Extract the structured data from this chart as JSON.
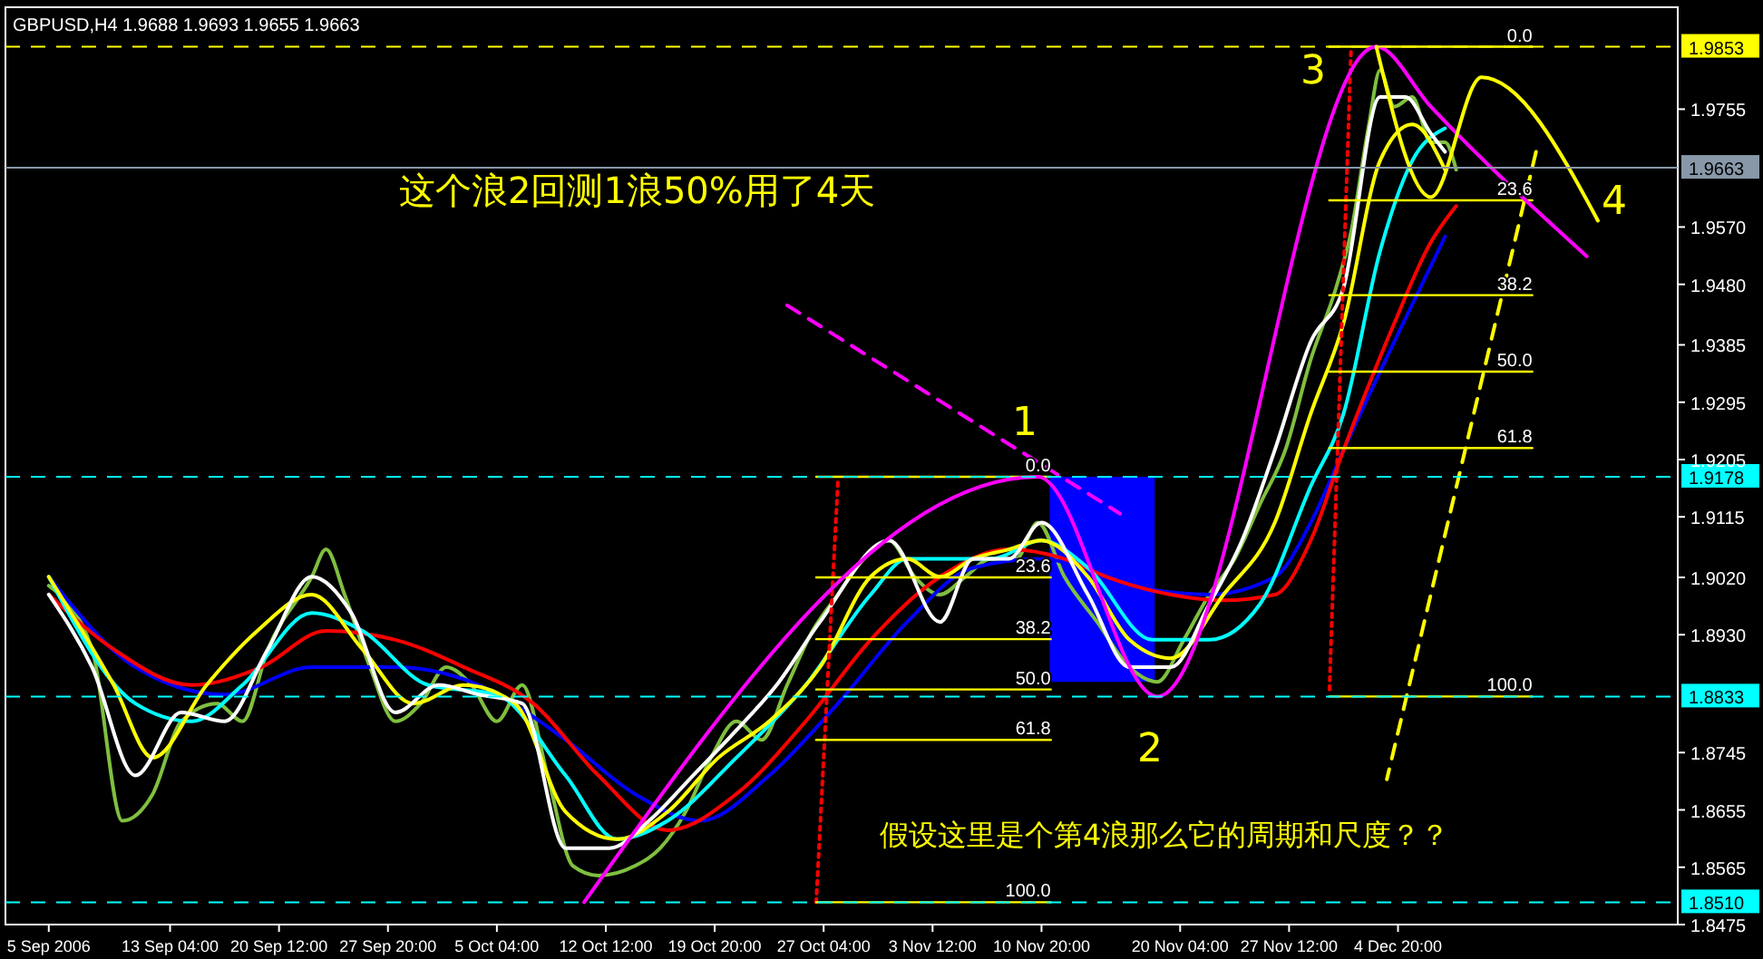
{
  "chart_data": {
    "type": "line",
    "title": "GBPUSD,H4  1.9688 1.9693 1.9655 1.9663",
    "xlim": [
      "2006-09-02T02:00",
      "2006-12-23T16:00"
    ],
    "ylim": [
      1.8475,
      1.9915
    ],
    "xticks": [
      {
        "value": "2006-09-05T00:00",
        "label": "5 Sep 2006"
      },
      {
        "value": "2006-09-13T04:00",
        "label": "13 Sep 04:00"
      },
      {
        "value": "2006-09-20T12:00",
        "label": "20 Sep 12:00"
      },
      {
        "value": "2006-09-27T20:00",
        "label": "27 Sep 20:00"
      },
      {
        "value": "2006-10-05T04:00",
        "label": "5 Oct 04:00"
      },
      {
        "value": "2006-10-12T12:00",
        "label": "12 Oct 12:00"
      },
      {
        "value": "2006-10-19T20:00",
        "label": "19 Oct 20:00"
      },
      {
        "value": "2006-10-27T04:00",
        "label": "27 Oct 04:00"
      },
      {
        "value": "2006-11-03T12:00",
        "label": "3 Nov 12:00"
      },
      {
        "value": "2006-11-10T20:00",
        "label": "10 Nov 20:00"
      },
      {
        "value": "2006-11-20T04:00",
        "label": "20 Nov 04:00"
      },
      {
        "value": "2006-11-27T12:00",
        "label": "27 Nov 12:00"
      },
      {
        "value": "2006-12-04T20:00",
        "label": "4 Dec 20:00"
      }
    ],
    "yticks": [
      {
        "value": 1.8475,
        "label": "1.8475"
      },
      {
        "value": 1.8565,
        "label": "1.8565"
      },
      {
        "value": 1.8655,
        "label": "1.8655"
      },
      {
        "value": 1.8745,
        "label": "1.8745"
      },
      {
        "value": 1.893,
        "label": "1.8930"
      },
      {
        "value": 1.902,
        "label": "1.9020"
      },
      {
        "value": 1.9115,
        "label": "1.9115"
      },
      {
        "value": 1.9205,
        "label": "1.9205"
      },
      {
        "value": 1.9295,
        "label": "1.9295"
      },
      {
        "value": 1.9385,
        "label": "1.9385"
      },
      {
        "value": 1.948,
        "label": "1.9480"
      },
      {
        "value": 1.957,
        "label": "1.9570"
      },
      {
        "value": 1.9755,
        "label": "1.9755"
      }
    ],
    "ref_lines": [
      {
        "axis": "y",
        "value": 1.9853,
        "label": "1.9853",
        "color": "#ffff00",
        "line_style": "dashed"
      },
      {
        "axis": "y",
        "value": 1.9663,
        "label": "1.9663",
        "color": "#8898a8",
        "line_style": "solid"
      },
      {
        "axis": "y",
        "value": 1.9178,
        "label": "1.9178",
        "color": "#00ffff",
        "line_style": "dashed"
      },
      {
        "axis": "y",
        "value": 1.8833,
        "label": "1.8833",
        "color": "#00ffff",
        "line_style": "dashed"
      },
      {
        "axis": "y",
        "value": 1.851,
        "label": "1.8510",
        "color": "#00ffff",
        "line_style": "dashed"
      }
    ],
    "series": [
      {
        "type": "bar",
        "color": "#0000ff",
        "x": [
          "2006-11-14T22:00"
        ],
        "base": [
          1.8856
        ],
        "values": [
          0.0322
        ]
      },
      {
        "color": "#7fbf3f",
        "x": [
          "2006-09-05T00:00",
          "2006-09-07T22:00",
          "2006-09-09T23:00",
          "2006-09-12T00:00",
          "2006-09-13T22:00",
          "2006-09-16T08:00",
          "2006-09-18T01:00",
          "2006-09-19T18:00",
          "2006-09-22T17:00",
          "2006-09-23T16:00",
          "2006-09-24T22:00",
          "2006-09-26T15:00",
          "2006-09-28T08:00",
          "2006-09-30T01:00",
          "2006-10-01T18:00",
          "2006-10-03T11:00",
          "2006-10-05T04:00",
          "2006-10-06T21:00",
          "2006-10-08T14:00",
          "2006-10-10T07:00",
          "2006-10-12T00:00",
          "2006-10-14T11:00",
          "2006-10-16T04:00",
          "2006-10-17T21:00",
          "2006-10-19T14:00",
          "2006-10-21T07:00",
          "2006-10-23T00:00",
          "2006-10-24T17:00",
          "2006-10-26T10:00",
          "2006-10-28T03:00",
          "2006-10-29T21:00",
          "2006-10-31T14:00",
          "2006-11-02T07:00",
          "2006-11-04T00:00",
          "2006-11-05T17:00",
          "2006-11-07T10:00",
          "2006-11-09T03:00",
          "2006-11-10T14:00",
          "2006-11-12T09:00",
          "2006-11-14T14:00",
          "2006-11-16T18:00",
          "2006-11-18T15:00",
          "2006-11-20T10:00",
          "2006-11-22T03:00",
          "2006-11-23T20:00",
          "2006-11-25T13:00",
          "2006-11-27T06:00",
          "2006-11-28T23:00",
          "2006-11-30T16:00",
          "2006-12-01T16:00",
          "2006-12-02T21:00",
          "2006-12-03T15:00",
          "2006-12-04T14:00",
          "2006-12-05T19:00",
          "2006-12-07T01:00",
          "2006-12-08T00:00",
          "2006-12-08T18:00"
        ],
        "values": [
          1.9007,
          1.8907,
          1.8638,
          1.868,
          1.8794,
          1.8822,
          1.8794,
          1.8907,
          1.9021,
          1.9064,
          1.8993,
          1.8879,
          1.8794,
          1.8822,
          1.8879,
          1.8851,
          1.8794,
          1.8851,
          1.8709,
          1.8567,
          1.8552,
          1.8567,
          1.8595,
          1.8652,
          1.8737,
          1.8794,
          1.8765,
          1.8851,
          1.8936,
          1.8993,
          1.9049,
          1.9078,
          1.9021,
          1.8993,
          1.9021,
          1.9049,
          1.9049,
          1.9106,
          1.9021,
          1.895,
          1.8879,
          1.8856,
          1.8922,
          1.8993,
          1.9049,
          1.9135,
          1.922,
          1.9362,
          1.9475,
          1.9561,
          1.9731,
          1.9816,
          1.9759,
          1.9774,
          1.9703,
          1.9703,
          1.966
        ]
      },
      {
        "color": "#0000ff",
        "x": [
          "2006-09-05T00:00",
          "2006-09-10T20:00",
          "2006-09-16T20:00",
          "2006-09-22T17:00",
          "2006-09-28T08:00",
          "2006-10-03T23:00",
          "2006-10-09T19:00",
          "2006-10-14T11:00",
          "2006-10-18T21:00",
          "2006-10-23T12:00",
          "2006-10-28T03:00",
          "2006-11-01T19:00",
          "2006-11-06T05:00",
          "2006-11-10T20:00",
          "2006-11-16T18:00",
          "2006-11-22T03:00",
          "2006-11-26T13:00",
          "2006-11-28T23:00",
          "2006-12-01T04:00",
          "2006-12-04T14:00",
          "2006-12-08T00:00"
        ],
        "values": [
          1.9021,
          1.8879,
          1.8836,
          1.8879,
          1.8879,
          1.8851,
          1.8765,
          1.868,
          1.8638,
          1.8709,
          1.8822,
          1.895,
          1.9035,
          1.9049,
          1.9007,
          1.8993,
          1.9021,
          1.9106,
          1.922,
          1.939,
          1.9555
        ]
      },
      {
        "color": "#ff0000",
        "x": [
          "2006-09-05T00:00",
          "2006-09-09T09:00",
          "2006-09-14T15:00",
          "2006-09-19T07:00",
          "2006-09-23T16:00",
          "2006-09-28T08:00",
          "2006-10-02T23:00",
          "2006-10-07T15:00",
          "2006-10-12T00:00",
          "2006-10-16T16:00",
          "2006-10-21T07:00",
          "2006-10-25T23:00",
          "2006-10-30T08:00",
          "2006-11-04T00:00",
          "2006-11-08T15:00",
          "2006-11-12T09:00",
          "2006-11-15T05:00",
          "2006-11-19T13:00",
          "2006-11-23T02:00",
          "2006-11-26T13:00",
          "2006-11-28T23:00",
          "2006-12-01T04:00",
          "2006-12-04T14:00",
          "2006-12-07T01:00",
          "2006-12-08T18:00"
        ],
        "values": [
          1.8993,
          1.8907,
          1.8851,
          1.8879,
          1.8936,
          1.8922,
          1.8879,
          1.8822,
          1.8709,
          1.8623,
          1.868,
          1.8794,
          1.8922,
          1.9021,
          1.9064,
          1.9049,
          1.9021,
          1.8993,
          1.8984,
          1.8993,
          1.9078,
          1.922,
          1.9419,
          1.9546,
          1.9603
        ]
      },
      {
        "color": "#00ffff",
        "x": [
          "2006-09-05T00:00",
          "2006-09-10T20:00",
          "2006-09-14T15:00",
          "2006-09-18T01:00",
          "2006-09-22T17:00",
          "2006-09-26T03:00",
          "2006-09-30T13:00",
          "2006-10-05T04:00",
          "2006-10-09T19:00",
          "2006-10-13T06:00",
          "2006-10-16T16:00",
          "2006-10-21T07:00",
          "2006-10-25T23:00",
          "2006-10-30T08:00",
          "2006-11-01T19:00",
          "2006-11-04T00:00",
          "2006-11-07T10:00",
          "2006-11-10T20:00",
          "2006-11-13T23:00",
          "2006-11-18T07:00",
          "2006-11-22T03:00",
          "2006-11-25T13:00",
          "2006-11-28T23:00",
          "2006-12-01T04:00",
          "2006-12-03T15:00",
          "2006-12-05T19:00",
          "2006-12-08T00:00"
        ],
        "values": [
          1.9021,
          1.8822,
          1.8794,
          1.8851,
          1.8964,
          1.8936,
          1.8851,
          1.8836,
          1.8709,
          1.8609,
          1.8638,
          1.8737,
          1.8851,
          1.8993,
          1.9049,
          1.9049,
          1.9049,
          1.9078,
          1.9035,
          1.8922,
          1.8922,
          1.8978,
          1.9163,
          1.9277,
          1.9532,
          1.9674,
          1.9725
        ]
      },
      {
        "color": "#ffff00",
        "x": [
          "2006-09-05T00:00",
          "2006-09-09T09:00",
          "2006-09-12T00:00",
          "2006-09-15T15:00",
          "2006-09-19T01:00",
          "2006-09-22T17:00",
          "2006-09-26T03:00",
          "2006-09-29T13:00",
          "2006-10-02T23:00",
          "2006-10-06T09:00",
          "2006-10-09T19:00",
          "2006-10-13T06:00",
          "2006-10-16T16:00",
          "2006-10-20T02:00",
          "2006-10-23T12:00",
          "2006-10-26T22:00",
          "2006-10-30T08:00",
          "2006-11-01T19:00",
          "2006-11-04T00:00",
          "2006-11-06T05:00",
          "2006-11-08T15:00",
          "2006-11-10T20:00",
          "2006-11-13T23:00",
          "2006-11-16T18:00",
          "2006-11-19T13:00",
          "2006-11-23T02:00",
          "2006-11-26T13:00",
          "2006-11-28T23:00",
          "2006-12-01T04:00",
          "2006-12-03T15:00",
          "2006-12-05T19:00",
          "2006-12-08T00:00"
        ],
        "values": [
          1.9021,
          1.8851,
          1.8737,
          1.8851,
          1.8936,
          1.8993,
          1.8907,
          1.8822,
          1.8851,
          1.8822,
          1.8652,
          1.8609,
          1.8652,
          1.8737,
          1.8794,
          1.8879,
          1.9021,
          1.9049,
          1.9021,
          1.9049,
          1.9064,
          1.9078,
          1.9021,
          1.8922,
          1.8893,
          1.8993,
          1.9106,
          1.9277,
          1.9419,
          1.9674,
          1.9731,
          1.966
        ]
      },
      {
        "color": "#ffffff",
        "x": [
          "2006-09-05T00:00",
          "2006-09-07T22:00",
          "2006-09-10T20:00",
          "2006-09-13T22:00",
          "2006-09-16T20:00",
          "2006-09-19T18:00",
          "2006-09-22T17:00",
          "2006-09-25T09:00",
          "2006-09-28T08:00",
          "2006-10-01T06:00",
          "2006-10-03T23:00",
          "2006-10-06T21:00",
          "2006-10-09T19:00",
          "2006-10-12T18:00",
          "2006-10-15T10:00",
          "2006-10-18T09:00",
          "2006-10-21T07:00",
          "2006-10-24T00:00",
          "2006-10-26T22:00",
          "2006-10-31T14:00",
          "2006-11-04T00:00",
          "2006-11-06T05:00",
          "2006-11-08T15:00",
          "2006-11-10T20:00",
          "2006-11-13T23:00",
          "2006-11-16T18:00",
          "2006-11-19T13:00",
          "2006-11-22T03:00",
          "2006-11-24T08:00",
          "2006-11-26T13:00",
          "2006-11-28T23:00",
          "2006-12-01T04:00",
          "2006-12-03T15:00",
          "2006-12-05T08:00",
          "2006-12-07T01:00",
          "2006-12-08T00:00"
        ],
        "values": [
          1.8993,
          1.8879,
          1.8709,
          1.8808,
          1.8794,
          1.8907,
          1.9021,
          1.8964,
          1.8808,
          1.8851,
          1.8836,
          1.8822,
          1.8595,
          1.8595,
          1.8638,
          1.8709,
          1.878,
          1.8851,
          1.895,
          1.9078,
          1.895,
          1.9049,
          1.9049,
          1.9106,
          1.8993,
          1.8879,
          1.8879,
          1.8978,
          1.9078,
          1.922,
          1.939,
          1.9475,
          1.9774,
          1.9774,
          1.9717,
          1.9688
        ]
      },
      {
        "color": "#ff0000",
        "line_style": "dotted",
        "x": [
          "2006-10-28T03:00",
          "2006-10-26T16:00"
        ],
        "values": [
          1.9169,
          1.851
        ]
      },
      {
        "color": "#ff0000",
        "line_style": "dotted",
        "x": [
          "2006-12-01T16:00",
          "2006-11-30T05:00"
        ],
        "values": [
          1.9845,
          1.8836
        ]
      },
      {
        "color": "#ff00ff",
        "line_style": "dashed",
        "x": [
          "2006-10-24T17:00",
          "2006-11-16T03:00"
        ],
        "values": [
          1.9447,
          1.912
        ]
      },
      {
        "color": "#ffff00",
        "line_style": "dashed",
        "x": [
          "2006-12-14T03:00",
          "2006-12-04T02:00"
        ],
        "values": [
          1.9688,
          1.8703
        ]
      },
      {
        "name": "0.0",
        "color": "#ffff00",
        "x": [
          "2006-10-26T16:00",
          "2006-11-11T11:00"
        ],
        "values": [
          1.9178,
          1.9178
        ]
      },
      {
        "name": "23.6",
        "color": "#ffff00",
        "x": [
          "2006-10-26T16:00",
          "2006-11-11T11:00"
        ],
        "values": [
          1.902,
          1.902
        ]
      },
      {
        "name": "38.2",
        "color": "#ffff00",
        "x": [
          "2006-10-26T16:00",
          "2006-11-11T11:00"
        ],
        "values": [
          1.8923,
          1.8923
        ]
      },
      {
        "name": "50.0",
        "color": "#ffff00",
        "x": [
          "2006-10-26T16:00",
          "2006-11-11T11:00"
        ],
        "values": [
          1.8844,
          1.8844
        ]
      },
      {
        "name": "61.8",
        "color": "#ffff00",
        "x": [
          "2006-10-26T16:00",
          "2006-11-11T11:00"
        ],
        "values": [
          1.8765,
          1.8765
        ]
      },
      {
        "name": "100.0",
        "color": "#ffff00",
        "x": [
          "2006-10-26T16:00",
          "2006-11-11T11:00"
        ],
        "values": [
          1.851,
          1.851
        ]
      },
      {
        "name": "0.0",
        "color": "#ffff00",
        "x": [
          "2006-11-30T05:00",
          "2006-12-13T21:00"
        ],
        "values": [
          1.9853,
          1.9853
        ]
      },
      {
        "name": "23.6",
        "color": "#ffff00",
        "x": [
          "2006-11-30T05:00",
          "2006-12-13T21:00"
        ],
        "values": [
          1.9612,
          1.9612
        ]
      },
      {
        "name": "38.2",
        "color": "#ffff00",
        "x": [
          "2006-11-30T05:00",
          "2006-12-13T21:00"
        ],
        "values": [
          1.9463,
          1.9463
        ]
      },
      {
        "name": "50.0",
        "color": "#ffff00",
        "x": [
          "2006-11-30T05:00",
          "2006-12-13T21:00"
        ],
        "values": [
          1.9343,
          1.9343
        ]
      },
      {
        "name": "61.8",
        "color": "#ffff00",
        "x": [
          "2006-11-30T05:00",
          "2006-12-13T21:00"
        ],
        "values": [
          1.9223,
          1.9223
        ]
      },
      {
        "name": "100.0",
        "color": "#ffff00",
        "x": [
          "2006-11-30T05:00",
          "2006-12-13T21:00"
        ],
        "values": [
          1.8833,
          1.8833
        ]
      },
      {
        "color": "#ff00ff",
        "x": [
          "2006-10-11T01:00",
          "2006-11-10T14:00",
          "2006-11-18T15:00",
          "2006-12-03T09:00",
          "2006-12-07T01:00",
          "2006-12-17T13:00"
        ],
        "values": [
          1.851,
          1.9178,
          1.8833,
          1.9853,
          1.9759,
          1.9524
        ]
      },
      {
        "color": "#ffff00",
        "x": [
          "2006-12-03T09:00",
          "2006-12-07T01:00",
          "2006-12-10T11:00",
          "2006-12-18T07:00"
        ],
        "values": [
          1.9853,
          1.9617,
          1.9805,
          1.958
        ]
      }
    ],
    "annotations": [
      "这个浪2回测1浪50%用了4天",
      "假设这里是个第4浪那么它的周期和尺度？？",
      "1",
      "2",
      "3",
      "4"
    ]
  }
}
